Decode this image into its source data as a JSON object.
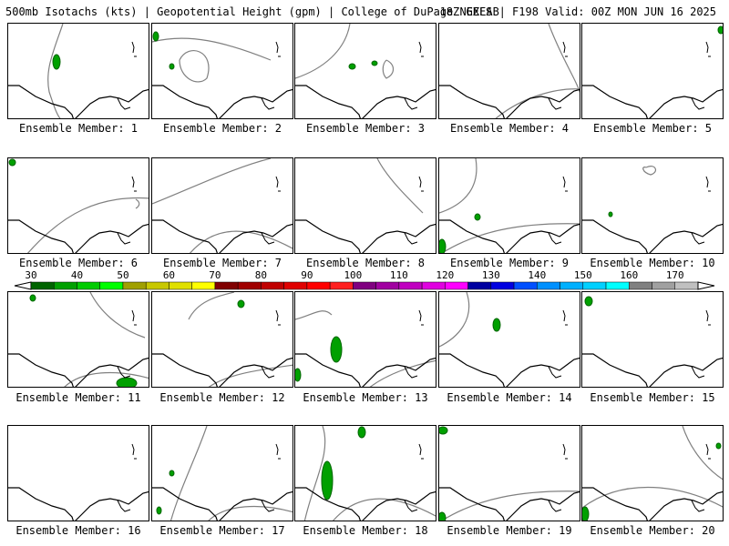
{
  "header": {
    "left": "500mb Isotachs (kts) | Geopotential Height (gpm) | College of DuPage NEXLAB",
    "right": "18Z GEFS | F198 Valid: 00Z MON JUN 16 2025"
  },
  "colorbar": {
    "labels": [
      "30",
      "40",
      "50",
      "60",
      "70",
      "80",
      "90",
      "100",
      "110",
      "120",
      "130",
      "140",
      "150",
      "160",
      "170"
    ],
    "colors": [
      "#006400",
      "#00a000",
      "#00cc00",
      "#00ff00",
      "#a0a000",
      "#c8c800",
      "#e0e000",
      "#ffff00",
      "#800000",
      "#a00000",
      "#c00000",
      "#e00000",
      "#ff0000",
      "#ff2020",
      "#800080",
      "#a000a0",
      "#c000c0",
      "#e000e0",
      "#ff00ff",
      "#0000a0",
      "#0000e0",
      "#0050ff",
      "#0090ff",
      "#00b0ff",
      "#00d0ff",
      "#00ffff",
      "#808080",
      "#a0a0a0",
      "#c0c0c0"
    ]
  },
  "members": [
    {
      "caption": "Ensemble Member: 1"
    },
    {
      "caption": "Ensemble Member: 2"
    },
    {
      "caption": "Ensemble Member: 3"
    },
    {
      "caption": "Ensemble Member: 4"
    },
    {
      "caption": "Ensemble Member: 5"
    },
    {
      "caption": "Ensemble Member: 6"
    },
    {
      "caption": "Ensemble Member: 7"
    },
    {
      "caption": "Ensemble Member: 8"
    },
    {
      "caption": "Ensemble Member: 9"
    },
    {
      "caption": "Ensemble Member: 10"
    },
    {
      "caption": "Ensemble Member: 11"
    },
    {
      "caption": "Ensemble Member: 12"
    },
    {
      "caption": "Ensemble Member: 13"
    },
    {
      "caption": "Ensemble Member: 14"
    },
    {
      "caption": "Ensemble Member: 15"
    },
    {
      "caption": "Ensemble Member: 16"
    },
    {
      "caption": "Ensemble Member: 17"
    },
    {
      "caption": "Ensemble Member: 18"
    },
    {
      "caption": "Ensemble Member: 19"
    },
    {
      "caption": "Ensemble Member: 20"
    }
  ]
}
